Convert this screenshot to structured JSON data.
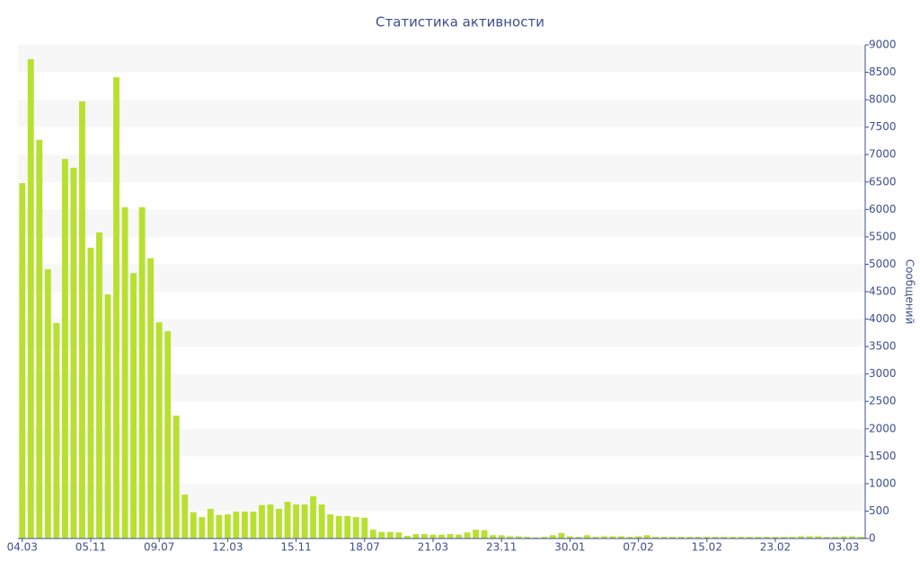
{
  "chart_data": {
    "type": "bar",
    "title": "Статистика активности",
    "y_label": "Сообщений",
    "categories": [
      "04.03",
      null,
      null,
      null,
      null,
      null,
      null,
      null,
      "05.11",
      null,
      null,
      null,
      null,
      null,
      null,
      null,
      "09.07",
      null,
      null,
      null,
      null,
      null,
      null,
      null,
      "12.03",
      null,
      null,
      null,
      null,
      null,
      null,
      null,
      "15.11",
      null,
      null,
      null,
      null,
      null,
      null,
      null,
      "18.07",
      null,
      null,
      null,
      null,
      null,
      null,
      null,
      "21.03",
      null,
      null,
      null,
      null,
      null,
      null,
      null,
      "23.11",
      null,
      null,
      null,
      null,
      null,
      null,
      null,
      "30.01",
      null,
      null,
      null,
      null,
      null,
      null,
      null,
      "07.02",
      null,
      null,
      null,
      null,
      null,
      null,
      null,
      "15.02",
      null,
      null,
      null,
      null,
      null,
      null,
      null,
      "23.02",
      null,
      null,
      null,
      null,
      null,
      null,
      null,
      "03.03",
      null,
      null
    ],
    "values": [
      6480,
      8740,
      7270,
      4910,
      3930,
      6920,
      6760,
      7970,
      5300,
      5580,
      4450,
      8410,
      6040,
      4840,
      6040,
      5110,
      3940,
      3780,
      2240,
      800,
      480,
      390,
      540,
      430,
      440,
      490,
      490,
      490,
      610,
      620,
      540,
      670,
      620,
      620,
      770,
      620,
      440,
      410,
      410,
      390,
      380,
      160,
      120,
      120,
      110,
      50,
      80,
      80,
      70,
      70,
      80,
      70,
      110,
      160,
      150,
      60,
      60,
      40,
      40,
      30,
      20,
      30,
      60,
      100,
      40,
      30,
      60,
      30,
      40,
      40,
      40,
      30,
      40,
      60,
      30,
      30,
      30,
      30,
      30,
      30,
      30,
      30,
      30,
      30,
      30,
      30,
      30,
      30,
      30,
      30,
      30,
      40,
      40,
      40,
      30,
      30,
      40,
      40,
      30
    ],
    "color": "#b8e030",
    "ylim": [
      0,
      9000
    ],
    "yticks": [
      0,
      500,
      1000,
      1500,
      2000,
      2500,
      3000,
      3500,
      4000,
      4500,
      5000,
      5500,
      6000,
      6500,
      7000,
      7500,
      8000,
      8500,
      9000
    ],
    "grid": true,
    "y_axis_side": "right"
  }
}
